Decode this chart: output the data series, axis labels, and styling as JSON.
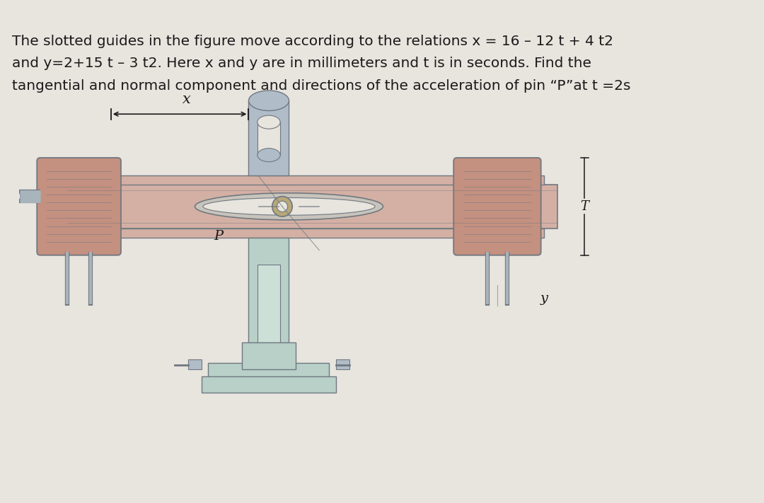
{
  "background_color": "#e8e4de",
  "text_line1": "The slotted guides in the figure move according to the relations x = 16 – 12 t + 4 t2",
  "text_line2": "and y=2+15 t – 3 t2. Here x and y are in millimeters and t is in seconds. Find the",
  "text_line3": "tangential and normal component and directions of the acceleration of pin “P”at t =2s",
  "text_color": "#1a1a1a",
  "text_fontsize": 14.5,
  "label_x": "x",
  "label_y": "y",
  "label_P": "P",
  "label_T": "T",
  "pink_cyl": "#c49080",
  "pink_plate": "#d4b0a4",
  "pink_light": "#ddc0b8",
  "gray_slot": "#b0bcc8",
  "gray_slot_light": "#c8d4dc",
  "gray_dark": "#707880",
  "gray_line": "#909898",
  "pin_gold": "#b8a878",
  "oval_fill": "#c8c4bc",
  "green_slot": "#b8d0c8",
  "green_light": "#cce0d8",
  "rod_color": "#a8b4bc"
}
